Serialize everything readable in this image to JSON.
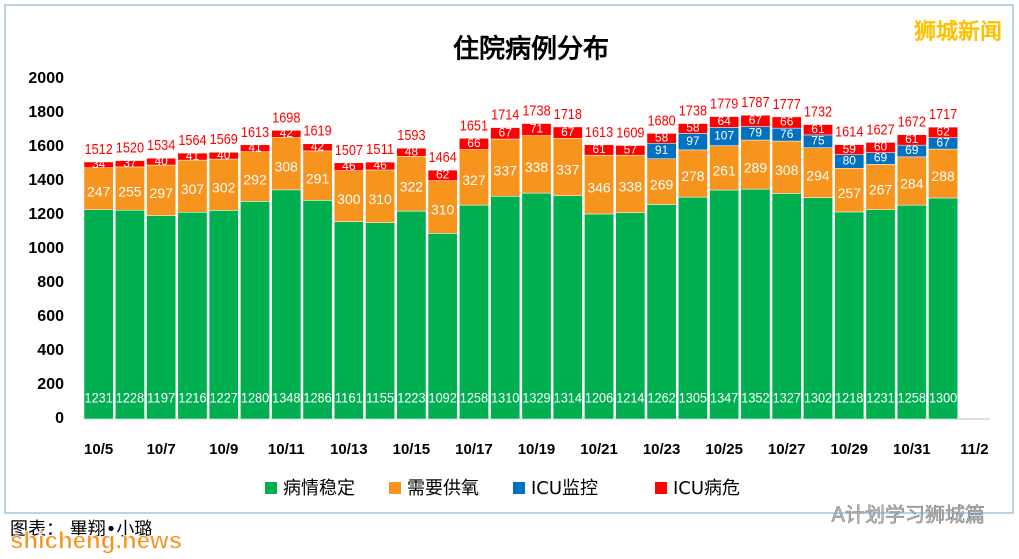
{
  "chart_data": {
    "type": "stacked-bar",
    "title": "住院病例分布",
    "categories": [
      "10/5",
      null,
      "10/7",
      null,
      "10/9",
      null,
      "10/11",
      null,
      "10/13",
      null,
      "10/15",
      null,
      "10/17",
      null,
      "10/19",
      null,
      "10/21",
      null,
      "10/23",
      null,
      "10/25",
      null,
      "10/27",
      null,
      "10/29",
      null,
      "10/31",
      null,
      "11/2"
    ],
    "series": [
      {
        "name": "病情稳定",
        "color": "#00b050",
        "values": [
          1231,
          1228,
          1197,
          1216,
          1227,
          1280,
          1348,
          1286,
          1161,
          1155,
          1223,
          1092,
          1258,
          1310,
          1329,
          1314,
          1206,
          1214,
          1262,
          1305,
          1347,
          1352,
          1327,
          1302,
          1218,
          1231,
          1258,
          1300,
          null
        ]
      },
      {
        "name": "需要供氧",
        "color": "#f7941d",
        "values": [
          247,
          255,
          297,
          307,
          302,
          292,
          308,
          291,
          300,
          310,
          322,
          310,
          327,
          337,
          338,
          337,
          346,
          338,
          269,
          278,
          261,
          289,
          308,
          294,
          257,
          267,
          284,
          288,
          null
        ]
      },
      {
        "name": "ICU监控",
        "color": "#0070c0",
        "values": [
          null,
          null,
          null,
          null,
          null,
          null,
          null,
          null,
          null,
          null,
          null,
          null,
          null,
          null,
          null,
          null,
          null,
          null,
          91,
          97,
          107,
          79,
          76,
          75,
          80,
          69,
          69,
          67,
          null
        ]
      },
      {
        "name": "ICU病危",
        "color": "#ff0000",
        "values": [
          34,
          37,
          40,
          41,
          40,
          41,
          42,
          42,
          46,
          46,
          48,
          62,
          66,
          67,
          71,
          67,
          61,
          57,
          58,
          58,
          64,
          67,
          66,
          61,
          59,
          60,
          61,
          62,
          null
        ]
      }
    ],
    "totals": [
      1512,
      1520,
      1534,
      1564,
      1569,
      1613,
      1698,
      1619,
      1507,
      1511,
      1593,
      1464,
      1651,
      1714,
      1738,
      1718,
      1613,
      1609,
      1680,
      1738,
      1779,
      1787,
      1777,
      1732,
      1614,
      1627,
      1672,
      1717,
      null
    ],
    "ylim": [
      0,
      2000
    ],
    "yticks": [
      0,
      200,
      400,
      600,
      800,
      1000,
      1200,
      1400,
      1600,
      1800,
      2000
    ],
    "grid": false,
    "legend": "bottom"
  },
  "watermarks": {
    "top_right": "狮城新闻",
    "credit": "图表： 畢翔•小璐",
    "site": "shicheng.news",
    "wechat": "A计划学习狮城篇"
  }
}
